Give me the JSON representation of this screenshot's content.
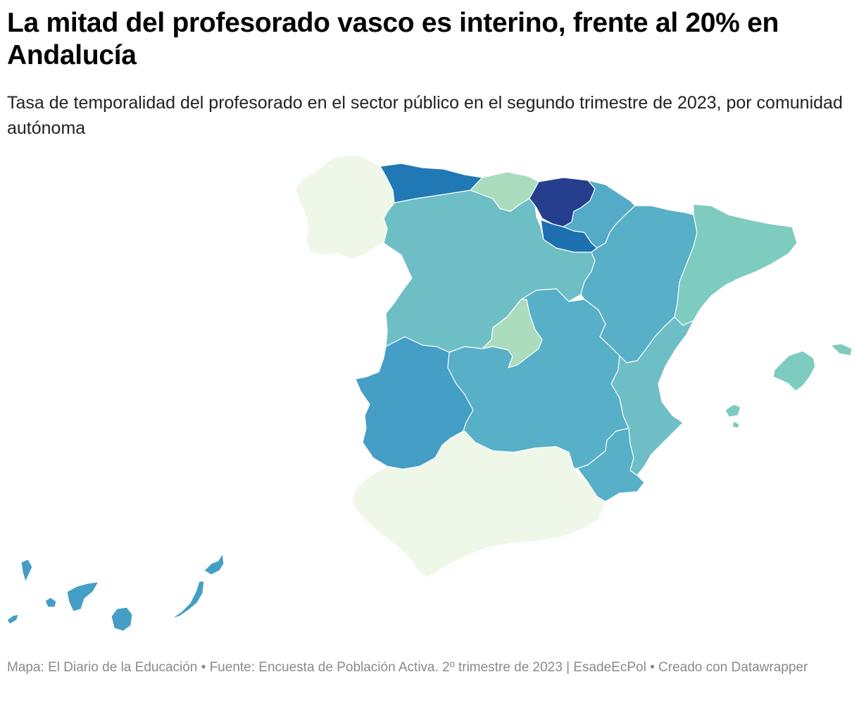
{
  "title": "La mitad del profesorado vasco es interino, frente al 20% en Andalucía",
  "subtitle": "Tasa de temporalidad del profesorado en el sector público en el segundo trimestre de 2023, por comunidad autónoma",
  "footer": "Mapa: El Diario de la Educación • Fuente: Encuesta de Población Activa. 2º trimestre de 2023 | EsadeEcPol • Creado con Datawrapper",
  "map": {
    "regions": [
      {
        "name": "Galicia",
        "color": "#eff7e8"
      },
      {
        "name": "Asturias",
        "color": "#2079b4"
      },
      {
        "name": "Cantabria",
        "color": "#aadcbd"
      },
      {
        "name": "País Vasco",
        "color": "#253f8e"
      },
      {
        "name": "Navarra",
        "color": "#53abc7"
      },
      {
        "name": "La Rioja",
        "color": "#1d6fb0"
      },
      {
        "name": "Aragón",
        "color": "#57afc8"
      },
      {
        "name": "Cataluña",
        "color": "#7ecbc0"
      },
      {
        "name": "Castilla y León",
        "color": "#6ebec6"
      },
      {
        "name": "Comunidad de Madrid",
        "color": "#aadcbd"
      },
      {
        "name": "Extremadura",
        "color": "#449ec6"
      },
      {
        "name": "Castilla-La Mancha",
        "color": "#57afc8"
      },
      {
        "name": "Comunidad Valenciana",
        "color": "#6ebec6"
      },
      {
        "name": "Región de Murcia",
        "color": "#57afc8"
      },
      {
        "name": "Andalucía",
        "color": "#eff7e8"
      },
      {
        "name": "Islas Baleares",
        "color": "#7ecbc0"
      },
      {
        "name": "Canarias",
        "color": "#449ec6"
      }
    ]
  }
}
